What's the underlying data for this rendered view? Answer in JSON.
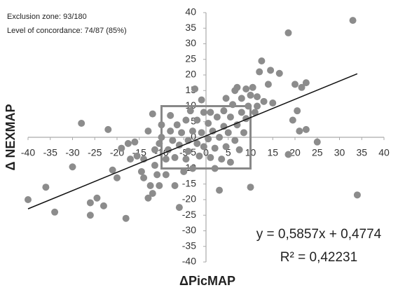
{
  "chart_data": {
    "type": "scatter",
    "notes": [
      "Exclusion zone: 93/180",
      "Level of concordance: 74/87 (85%)"
    ],
    "x_label": "ΔPicMAP",
    "y_label": "Δ NEXMAP",
    "equation": "y = 0,5857x + 0,4774",
    "r_squared": "R² = 0,42231",
    "color": "#8c8c8c",
    "xlim": [
      -40,
      40
    ],
    "ylim": [
      -40,
      40
    ],
    "xticks": [
      -40,
      -35,
      -30,
      -25,
      -20,
      -15,
      -10,
      -5,
      0,
      5,
      10,
      15,
      20,
      25,
      30,
      35,
      40
    ],
    "yticks": [
      -40,
      -35,
      -30,
      -25,
      -20,
      -15,
      -10,
      -5,
      0,
      5,
      10,
      15,
      20,
      25,
      30,
      35,
      40
    ],
    "trendline": {
      "slope": 0.5857,
      "intercept": 0.4774,
      "x": [
        -40,
        34
      ]
    },
    "exclusion_box": {
      "x": [
        -10,
        10
      ],
      "y": [
        -10,
        10
      ]
    },
    "x": [
      -40,
      -36,
      -34,
      -28,
      -30,
      -26,
      -26,
      -24.5,
      -23,
      -22,
      -21,
      -20,
      -18,
      -19,
      -17.5,
      -17,
      -16,
      -15.5,
      -14.5,
      -14,
      -14,
      -13,
      -13,
      -12.5,
      -12,
      -12,
      -11.5,
      -11.5,
      -11,
      -10.5,
      -10.5,
      -10,
      -10,
      -9,
      -9,
      -8.5,
      -8,
      -8,
      -7.5,
      -7,
      -7,
      -6.5,
      -6,
      -6,
      -5.5,
      -5,
      -4.5,
      -4.5,
      -4,
      -4,
      -3.5,
      -3,
      -3,
      -2.5,
      -2,
      -2,
      -1.5,
      -1,
      -1,
      -0.5,
      -0.5,
      0.5,
      0.5,
      1,
      1,
      1.5,
      2,
      2,
      2.5,
      3,
      3,
      3.5,
      4,
      4,
      4.5,
      4.5,
      5,
      5.5,
      5.5,
      6,
      6.5,
      6.5,
      7,
      7,
      7.5,
      8,
      8,
      8.5,
      9,
      9,
      9.5,
      10,
      10,
      10.5,
      11,
      11.5,
      11.5,
      12,
      12.5,
      13,
      14,
      14.5,
      15,
      16.5,
      18.5,
      18.5,
      19.5,
      20,
      20.5,
      21,
      21.5,
      22.5,
      22.5,
      25,
      33,
      34
    ],
    "y": [
      -20,
      -16,
      -24,
      4.5,
      -9.5,
      -21,
      -25,
      -19.5,
      -22,
      2.5,
      -10.5,
      -13,
      -26,
      -3.5,
      -2,
      -7,
      -1.5,
      -6,
      -11,
      -13,
      -7,
      -19.5,
      2,
      -15.5,
      -18,
      7.5,
      -4,
      -9,
      -12,
      -2,
      -15.5,
      4,
      0,
      -7,
      -12,
      -4,
      7,
      2,
      -1,
      -15.5,
      -6.5,
      4,
      -22.5,
      -2.5,
      1.5,
      -11,
      5.5,
      -7,
      -1,
      -4.5,
      8.5,
      2,
      -10,
      15.5,
      -2,
      5.5,
      -6,
      1.5,
      12,
      -3,
      8,
      -0.5,
      4.5,
      -6.5,
      8,
      2,
      -10,
      -3.5,
      6.5,
      0,
      -17,
      -7,
      3.5,
      8.5,
      -3,
      12.5,
      1.5,
      -8,
      6.5,
      10.5,
      -1,
      15,
      4,
      16,
      -4,
      8,
      12.5,
      1.5,
      15.5,
      6,
      10,
      13.5,
      -16,
      16,
      8,
      13,
      10,
      21,
      24.5,
      11.5,
      17,
      21.5,
      11,
      20.5,
      33.5,
      -5.5,
      5.5,
      17,
      8.5,
      2,
      16,
      17.5,
      2.5,
      -1.5,
      37.5,
      -18.5
    ]
  }
}
